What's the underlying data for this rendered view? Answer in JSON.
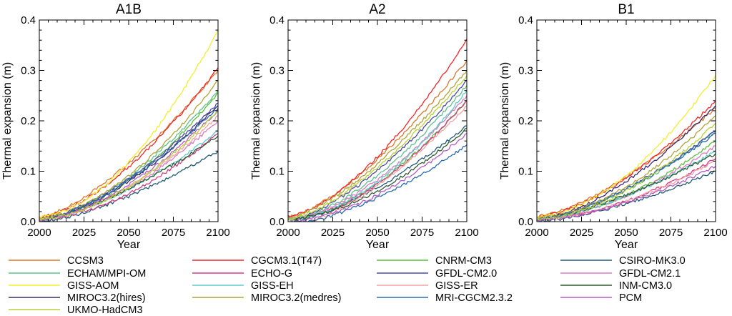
{
  "figure": {
    "legend_title": ""
  },
  "legend": [
    {
      "name": "CCSM3",
      "color": "#d9782a"
    },
    {
      "name": "CGCM3.1(T47)",
      "color": "#f2262a"
    },
    {
      "name": "CNRM-CM3",
      "color": "#58c13a"
    },
    {
      "name": "CSIRO-MK3.0",
      "color": "#1f5b78"
    },
    {
      "name": "ECHAM/MPI-OM",
      "color": "#5fc08e"
    },
    {
      "name": "ECHO-G",
      "color": "#d43c86"
    },
    {
      "name": "GFDL-CM2.0",
      "color": "#4a4aa3"
    },
    {
      "name": "GFDL-CM2.1",
      "color": "#d77ac0"
    },
    {
      "name": "GISS-AOM",
      "color": "#f2ee2c"
    },
    {
      "name": "GISS-EH",
      "color": "#63c8cf"
    },
    {
      "name": "GISS-ER",
      "color": "#f4a3a3"
    },
    {
      "name": "INM-CM3.0",
      "color": "#2f5a2f"
    },
    {
      "name": "MIROC3.2(hires)",
      "color": "#3a2a6e"
    },
    {
      "name": "MIROC3.2(medres)",
      "color": "#b3a23a"
    },
    {
      "name": "MRI-CGCM2.3.2",
      "color": "#2a6ab0"
    },
    {
      "name": "PCM",
      "color": "#b85ac8"
    },
    {
      "name": "UKMO-HadCM3",
      "color": "#b6d23a"
    }
  ],
  "chart_data": [
    {
      "type": "line",
      "title": "A1B",
      "xlabel": "Year",
      "ylabel": "Thermal expansion (m)",
      "xlim": [
        2000,
        2100
      ],
      "ylim": [
        0,
        0.4
      ],
      "xticks": [
        2000,
        2025,
        2050,
        2075,
        2100
      ],
      "yticks": [
        0.0,
        0.1,
        0.2,
        0.3,
        0.4
      ],
      "ytick_labels": [
        "0.0",
        "0.1",
        "0.2",
        "0.3",
        "0.4"
      ],
      "grid": false,
      "legend": "below",
      "series": [
        {
          "name": "CCSM3",
          "color": "#d9782a",
          "start": 0.01,
          "end": 0.3
        },
        {
          "name": "CGCM3.1(T47)",
          "color": "#f2262a",
          "start": 0.01,
          "end": 0.305
        },
        {
          "name": "CNRM-CM3",
          "color": "#58c13a",
          "start": 0.005,
          "end": 0.255
        },
        {
          "name": "CSIRO-MK3.0",
          "color": "#1f5b78",
          "start": 0.0,
          "end": 0.14
        },
        {
          "name": "ECHAM/MPI-OM",
          "color": "#5fc08e",
          "start": 0.005,
          "end": 0.26
        },
        {
          "name": "ECHO-G",
          "color": "#d43c86",
          "start": 0.005,
          "end": 0.175
        },
        {
          "name": "GFDL-CM2.0",
          "color": "#4a4aa3",
          "start": 0.005,
          "end": 0.235
        },
        {
          "name": "GFDL-CM2.1",
          "color": "#d77ac0",
          "start": 0.005,
          "end": 0.2
        },
        {
          "name": "GISS-AOM",
          "color": "#f2ee2c",
          "start": 0.01,
          "end": 0.38
        },
        {
          "name": "GISS-EH",
          "color": "#63c8cf",
          "start": 0.005,
          "end": 0.18
        },
        {
          "name": "GISS-ER",
          "color": "#f4a3a3",
          "start": 0.005,
          "end": 0.21
        },
        {
          "name": "INM-CM3.0",
          "color": "#2f5a2f",
          "start": 0.005,
          "end": 0.17
        },
        {
          "name": "MIROC3.2(hires)",
          "color": "#3a2a6e",
          "start": 0.005,
          "end": 0.23
        },
        {
          "name": "MIROC3.2(medres)",
          "color": "#b3a23a",
          "start": 0.008,
          "end": 0.28
        },
        {
          "name": "MRI-CGCM2.3.2",
          "color": "#2a6ab0",
          "start": 0.003,
          "end": 0.225
        },
        {
          "name": "PCM",
          "color": "#b85ac8",
          "start": 0.003,
          "end": 0.22
        },
        {
          "name": "UKMO-HadCM3",
          "color": "#b6d23a",
          "start": 0.005,
          "end": 0.22
        }
      ]
    },
    {
      "type": "line",
      "title": "A2",
      "xlabel": "Year",
      "ylabel": "Thermal expansion (m)",
      "xlim": [
        2000,
        2100
      ],
      "ylim": [
        0,
        0.4
      ],
      "xticks": [
        2000,
        2025,
        2050,
        2075,
        2100
      ],
      "yticks": [
        0.0,
        0.1,
        0.2,
        0.3,
        0.4
      ],
      "ytick_labels": [
        "0.0",
        "0.1",
        "0.2",
        "0.3",
        "0.4"
      ],
      "grid": false,
      "legend": "below",
      "series": [
        {
          "name": "CCSM3",
          "color": "#d9782a",
          "start": 0.01,
          "end": 0.32
        },
        {
          "name": "CGCM3.1(T47)",
          "color": "#f2262a",
          "start": 0.012,
          "end": 0.362
        },
        {
          "name": "CNRM-CM3",
          "color": "#58c13a",
          "start": 0.005,
          "end": 0.24
        },
        {
          "name": "CSIRO-MK3.0",
          "color": "#1f5b78",
          "start": 0.0,
          "end": 0.19
        },
        {
          "name": "ECHAM/MPI-OM",
          "color": "#5fc08e",
          "start": 0.005,
          "end": 0.27
        },
        {
          "name": "ECHO-G",
          "color": "#d43c86",
          "start": 0.005,
          "end": 0.24
        },
        {
          "name": "GFDL-CM2.0",
          "color": "#4a4aa3",
          "start": 0.005,
          "end": 0.28
        },
        {
          "name": "GFDL-CM2.1",
          "color": "#d77ac0",
          "start": 0.005,
          "end": 0.25
        },
        {
          "name": "GISS-EH",
          "color": "#63c8cf",
          "start": 0.005,
          "end": 0.26
        },
        {
          "name": "GISS-ER",
          "color": "#f4a3a3",
          "start": -0.01,
          "end": 0.23
        },
        {
          "name": "INM-CM3.0",
          "color": "#2f5a2f",
          "start": 0.005,
          "end": 0.185
        },
        {
          "name": "MIROC3.2(medres)",
          "color": "#b3a23a",
          "start": 0.008,
          "end": 0.3
        },
        {
          "name": "MRI-CGCM2.3.2",
          "color": "#2a6ab0",
          "start": -0.005,
          "end": 0.152
        },
        {
          "name": "PCM",
          "color": "#b85ac8",
          "start": 0.0,
          "end": 0.175
        },
        {
          "name": "UKMO-HadCM3",
          "color": "#b6d23a",
          "start": 0.005,
          "end": 0.29
        }
      ]
    },
    {
      "type": "line",
      "title": "B1",
      "xlabel": "Year",
      "ylabel": "Thermal expansion (m)",
      "xlim": [
        2000,
        2100
      ],
      "ylim": [
        0,
        0.4
      ],
      "xticks": [
        2000,
        2025,
        2050,
        2075,
        2100
      ],
      "yticks": [
        0.0,
        0.1,
        0.2,
        0.3,
        0.4
      ],
      "ytick_labels": [
        "0.0",
        "0.1",
        "0.2",
        "0.3",
        "0.4"
      ],
      "grid": false,
      "legend": "below",
      "series": [
        {
          "name": "CCSM3",
          "color": "#d9782a",
          "start": 0.01,
          "end": 0.225
        },
        {
          "name": "CGCM3.1(T47)",
          "color": "#f2262a",
          "start": 0.01,
          "end": 0.24
        },
        {
          "name": "CNRM-CM3",
          "color": "#58c13a",
          "start": 0.005,
          "end": 0.16
        },
        {
          "name": "CSIRO-MK3.0",
          "color": "#1f5b78",
          "start": 0.0,
          "end": 0.1
        },
        {
          "name": "ECHAM/MPI-OM",
          "color": "#5fc08e",
          "start": 0.005,
          "end": 0.18
        },
        {
          "name": "ECHO-G",
          "color": "#d43c86",
          "start": 0.005,
          "end": 0.125
        },
        {
          "name": "GFDL-CM2.0",
          "color": "#4a4aa3",
          "start": 0.005,
          "end": 0.18
        },
        {
          "name": "GFDL-CM2.1",
          "color": "#d77ac0",
          "start": 0.005,
          "end": 0.15
        },
        {
          "name": "GISS-AOM",
          "color": "#f2ee2c",
          "start": 0.01,
          "end": 0.29
        },
        {
          "name": "GISS-EH",
          "color": "#63c8cf",
          "start": 0.005,
          "end": 0.14
        },
        {
          "name": "GISS-ER",
          "color": "#f4a3a3",
          "start": 0.005,
          "end": 0.12
        },
        {
          "name": "INM-CM3.0",
          "color": "#2f5a2f",
          "start": 0.005,
          "end": 0.135
        },
        {
          "name": "MIROC3.2(hires)",
          "color": "#3a2a6e",
          "start": 0.005,
          "end": 0.23
        },
        {
          "name": "MIROC3.2(medres)",
          "color": "#b3a23a",
          "start": 0.008,
          "end": 0.21
        },
        {
          "name": "MRI-CGCM2.3.2",
          "color": "#2a6ab0",
          "start": 0.003,
          "end": 0.175
        },
        {
          "name": "PCM",
          "color": "#b85ac8",
          "start": 0.003,
          "end": 0.11
        },
        {
          "name": "UKMO-HadCM3",
          "color": "#b6d23a",
          "start": 0.005,
          "end": 0.195
        }
      ]
    }
  ]
}
